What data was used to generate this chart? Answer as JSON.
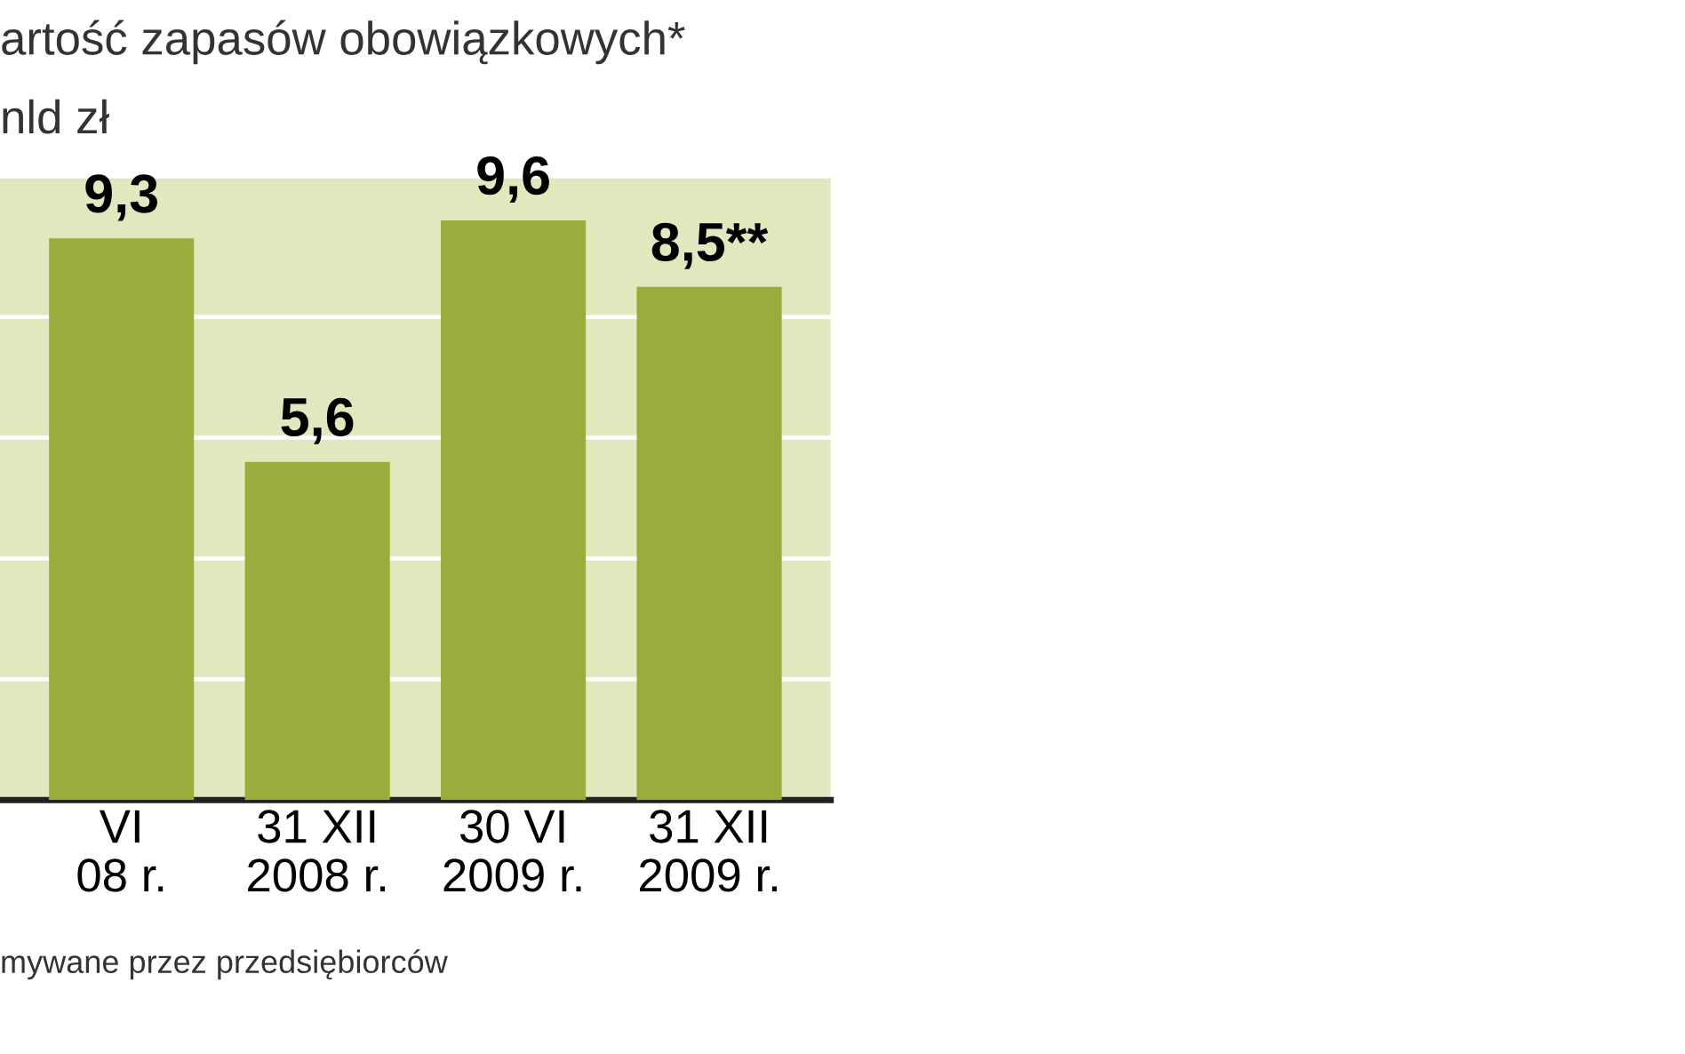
{
  "chart_data": {
    "type": "bar",
    "title": "artość zapasów obowiązkowych*",
    "subtitle": "nld zł",
    "categories": [
      "VI\n08 r.",
      "31 XII\n2008 r.",
      "30 VI\n2009 r.",
      "31 XII\n2009 r."
    ],
    "values": [
      9.3,
      5.6,
      9.6,
      8.5
    ],
    "value_labels": [
      "9,3",
      "5,6",
      "9,6",
      "8,5**"
    ],
    "color": "#9aad3c",
    "ylim": [
      0,
      10.3
    ],
    "yticks": [
      {
        "value": 2,
        "label": null
      },
      {
        "value": 4,
        "label": null
      },
      {
        "value": 6,
        "label": null
      },
      {
        "value": 8,
        "label": null
      }
    ],
    "grid": "y",
    "bands": [
      {
        "axis": "y",
        "from": 0,
        "to": 10.3,
        "color": "#e2e8be"
      }
    ],
    "tick_labels": "x",
    "annotations": [
      "mywane przez przedsiębiorców"
    ]
  }
}
